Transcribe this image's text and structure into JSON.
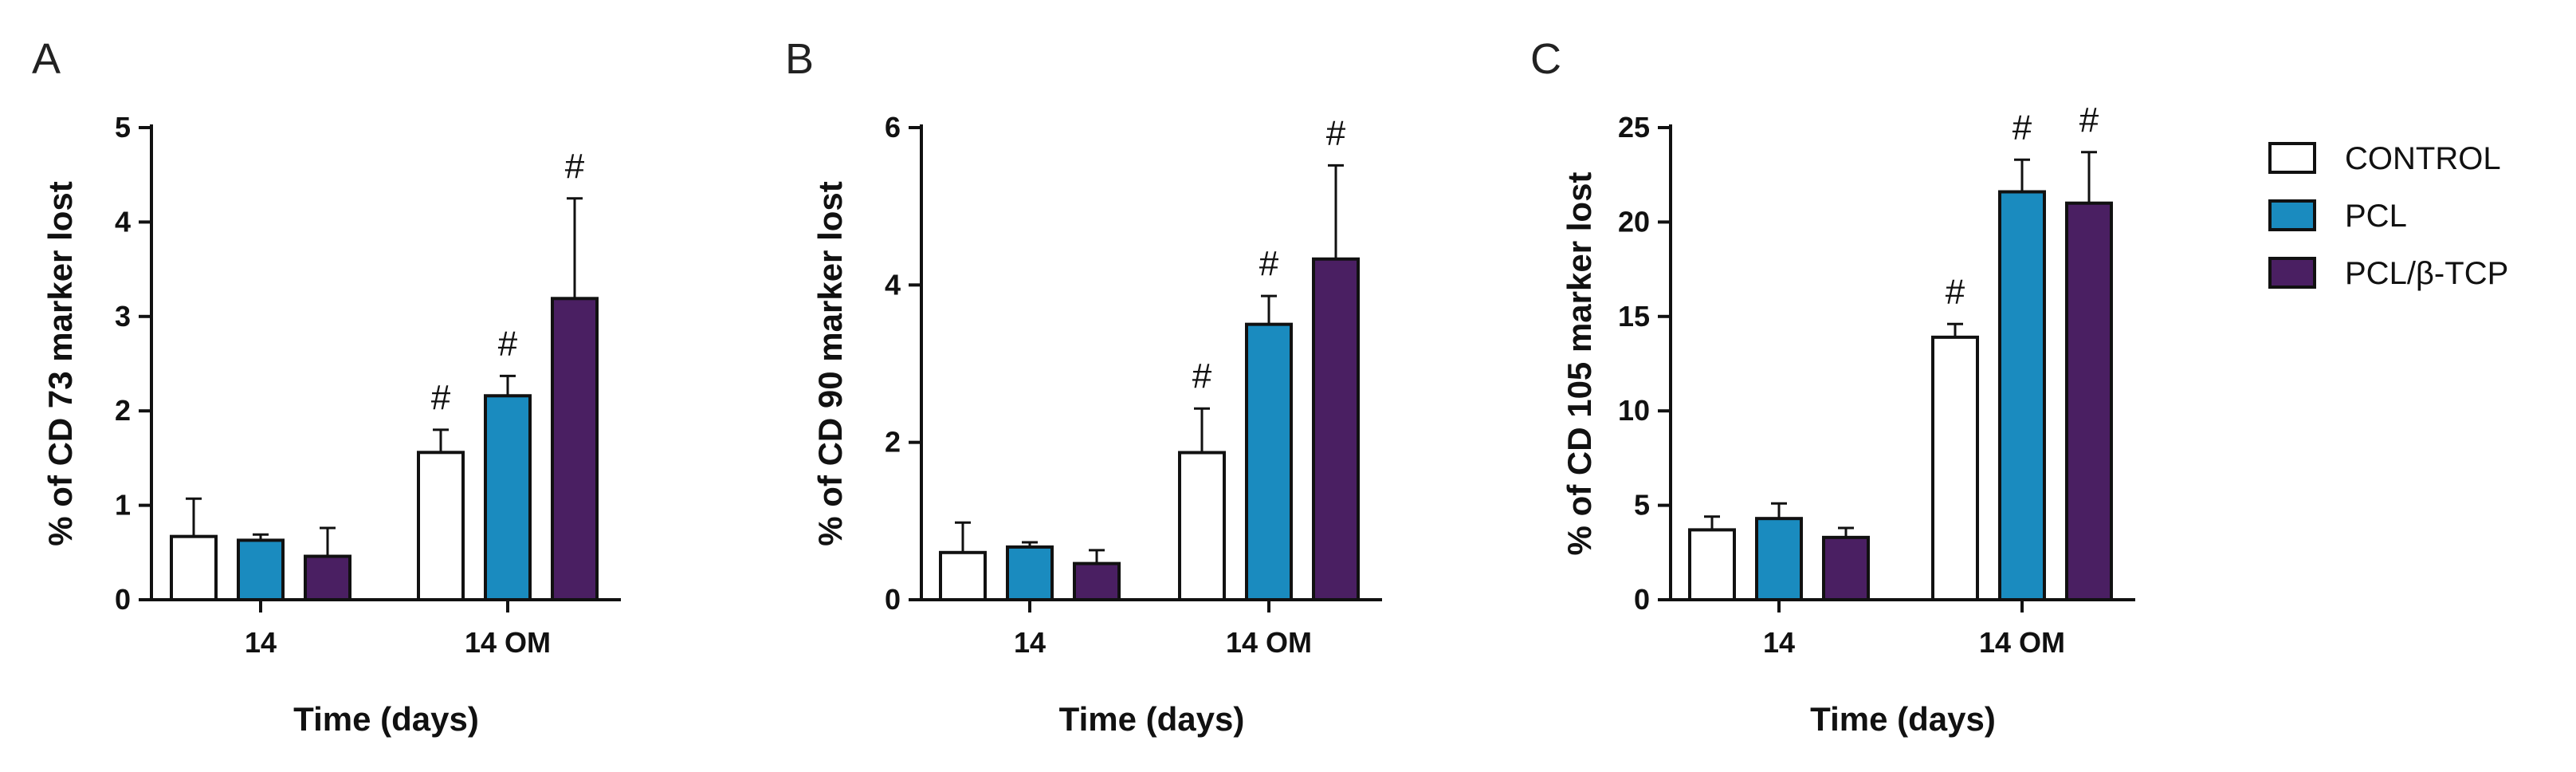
{
  "chart_data": [
    {
      "panel": "A",
      "type": "bar",
      "title": "",
      "xlabel": "Time (days)",
      "ylabel": "% of CD 73 marker lost",
      "categories": [
        "14",
        "14 OM"
      ],
      "ylim": [
        0,
        5
      ],
      "yticks": [
        "0",
        "1",
        "2",
        "3",
        "4",
        "5"
      ],
      "series": [
        {
          "name": "CONTROL",
          "values": [
            0.67,
            1.56
          ],
          "errors": [
            0.4,
            0.24
          ],
          "sig": [
            "",
            "#"
          ]
        },
        {
          "name": "PCL",
          "values": [
            0.63,
            2.16
          ],
          "errors": [
            0.06,
            0.21
          ],
          "sig": [
            "",
            "#"
          ]
        },
        {
          "name": "PCL/β-TCP",
          "values": [
            0.46,
            3.19
          ],
          "errors": [
            0.3,
            1.06
          ],
          "sig": [
            "",
            "#"
          ]
        }
      ]
    },
    {
      "panel": "B",
      "type": "bar",
      "title": "",
      "xlabel": "Time (days)",
      "ylabel": "% of CD 90 marker lost",
      "categories": [
        "14",
        "14 OM"
      ],
      "ylim": [
        0,
        6
      ],
      "yticks": [
        "0",
        "2",
        "4",
        "6"
      ],
      "series": [
        {
          "name": "CONTROL",
          "values": [
            0.6,
            1.87
          ],
          "errors": [
            0.38,
            0.56
          ],
          "sig": [
            "",
            "#"
          ]
        },
        {
          "name": "PCL",
          "values": [
            0.67,
            3.5
          ],
          "errors": [
            0.06,
            0.36
          ],
          "sig": [
            "",
            "#"
          ]
        },
        {
          "name": "PCL/β-TCP",
          "values": [
            0.46,
            4.33
          ],
          "errors": [
            0.17,
            1.19
          ],
          "sig": [
            "",
            "#"
          ]
        }
      ]
    },
    {
      "panel": "C",
      "type": "bar",
      "title": "",
      "xlabel": "Time (days)",
      "ylabel": "% of CD 105 marker lost",
      "categories": [
        "14",
        "14 OM"
      ],
      "ylim": [
        0,
        25
      ],
      "yticks": [
        "0",
        "5",
        "10",
        "15",
        "20",
        "25"
      ],
      "series": [
        {
          "name": "CONTROL",
          "values": [
            3.7,
            13.9
          ],
          "errors": [
            0.7,
            0.7
          ],
          "sig": [
            "",
            "#"
          ]
        },
        {
          "name": "PCL",
          "values": [
            4.3,
            21.6
          ],
          "errors": [
            0.8,
            1.7
          ],
          "sig": [
            "",
            "#"
          ]
        },
        {
          "name": "PCL/β-TCP",
          "values": [
            3.3,
            21.0
          ],
          "errors": [
            0.5,
            2.7
          ],
          "sig": [
            "",
            "#"
          ]
        }
      ]
    }
  ],
  "legend": {
    "position": "right",
    "items": [
      {
        "label": "CONTROL",
        "color": "#ffffff"
      },
      {
        "label": "PCL",
        "color": "#1a8bbf"
      },
      {
        "label": "PCL/β-TCP",
        "color": "#4a1f62"
      }
    ]
  }
}
